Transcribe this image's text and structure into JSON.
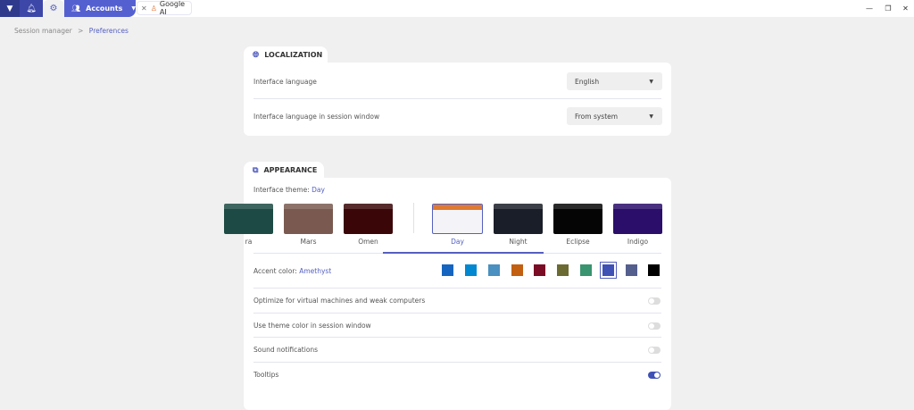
{
  "topbar": {
    "accounts_label": "Accounts",
    "tab_label": "Google AI"
  },
  "breadcrumb": {
    "parent": "Session manager",
    "separator": ">",
    "current": "Preferences"
  },
  "localization": {
    "title": "LOCALIZATION",
    "rows": [
      {
        "label": "Interface language",
        "value": "English"
      },
      {
        "label": "Interface language in session window",
        "value": "From system"
      }
    ]
  },
  "appearance": {
    "title": "APPEARANCE",
    "theme_label": "Interface theme:",
    "theme_value": "Day",
    "themes": [
      {
        "name": "ra",
        "color": "#1d4a44"
      },
      {
        "name": "Mars",
        "color": "#7a5a50"
      },
      {
        "name": "Omen",
        "color": "#3a0608"
      },
      {
        "name": "Day",
        "color": "#f4f4f8",
        "selected": true
      },
      {
        "name": "Night",
        "color": "#1a1e28"
      },
      {
        "name": "Eclipse",
        "color": "#050505"
      },
      {
        "name": "Indigo",
        "color": "#2a0e6a"
      }
    ],
    "accent_label": "Accent color:",
    "accent_value": "Amethyst",
    "accent_colors": [
      "#1565c0",
      "#0288d1",
      "#4a90c0",
      "#c25f10",
      "#7a0c25",
      "#6b6a32",
      "#3a9470",
      "#3f51b5",
      "#545f8e",
      "#000000"
    ],
    "accent_selected": 7,
    "toggles": [
      {
        "label": "Optimize for virtual machines and weak computers",
        "on": false
      },
      {
        "label": "Use theme color in session window",
        "on": false
      },
      {
        "label": "Sound notifications",
        "on": false
      },
      {
        "label": "Tooltips",
        "on": true
      }
    ]
  },
  "colors": {
    "accent": "#5560c0",
    "topbar": "#3d47a8"
  }
}
